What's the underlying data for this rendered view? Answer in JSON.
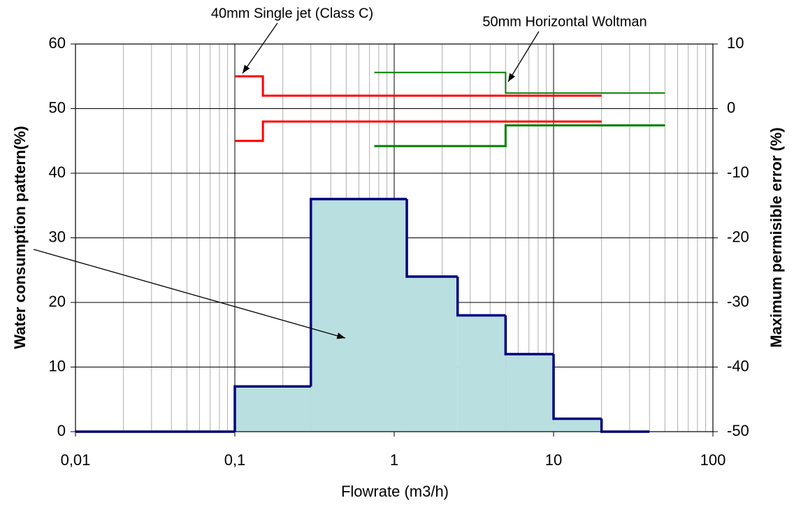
{
  "chart_data": {
    "type": "histogram",
    "xlabel": "Flowrate (m3/h)",
    "ylabel": "Water consumption pattern(%)",
    "y2label": "Maximum permisible error (%)",
    "xscale": "log",
    "xlim": [
      0.01,
      100
    ],
    "xticks": [
      {
        "value": 0.01,
        "label": "0,01"
      },
      {
        "value": 0.1,
        "label": "0,1"
      },
      1,
      10,
      100
    ],
    "xminorticks": [
      0.02,
      0.03,
      0.04,
      0.05,
      0.06,
      0.07,
      0.08,
      0.09,
      0.2,
      0.3,
      0.4,
      0.5,
      0.6,
      0.7,
      0.8,
      0.9,
      2,
      3,
      4,
      5,
      6,
      7,
      8,
      9,
      20,
      30,
      40,
      50,
      60,
      70,
      80,
      90
    ],
    "ylim": [
      0,
      60
    ],
    "yticks": [
      0,
      10,
      20,
      30,
      40,
      50,
      60
    ],
    "y2lim": [
      -50,
      10
    ],
    "y2ticks": [
      -50,
      -40,
      -30,
      -20,
      -10,
      0,
      10
    ],
    "grid": true,
    "bins": [
      0.01,
      0.1,
      0.3,
      1.2,
      2.5,
      5,
      10,
      20,
      40
    ],
    "counts": [
      0,
      7,
      36,
      24,
      18,
      12,
      2,
      0
    ],
    "color": "#b9dfe0",
    "edgecolor": "#000080",
    "series": [
      {
        "type": "line",
        "axis": "y2",
        "color": "#ff0000",
        "width": 3,
        "x": [
          0.1,
          0.15,
          0.15,
          20
        ],
        "values": [
          5,
          5,
          2,
          2
        ]
      },
      {
        "type": "line",
        "axis": "y2",
        "color": "#ff0000",
        "width": 3,
        "x": [
          0.1,
          0.15,
          0.15,
          20
        ],
        "values": [
          -5,
          -5,
          -2,
          -2
        ]
      },
      {
        "type": "line",
        "axis": "y2",
        "color": "#008000",
        "width": 2,
        "x": [
          0.75,
          5,
          5,
          50
        ],
        "values": [
          5.6,
          5.6,
          2.4,
          2.4
        ]
      },
      {
        "type": "line",
        "axis": "y2",
        "color": "#008000",
        "width": 3,
        "x": [
          0.75,
          5,
          5,
          50
        ],
        "values": [
          -5.8,
          -5.8,
          -2.6,
          -2.6
        ]
      }
    ],
    "annotations": [
      "40mm Single jet (Class C)",
      "50mm Horizontal Woltman"
    ]
  }
}
